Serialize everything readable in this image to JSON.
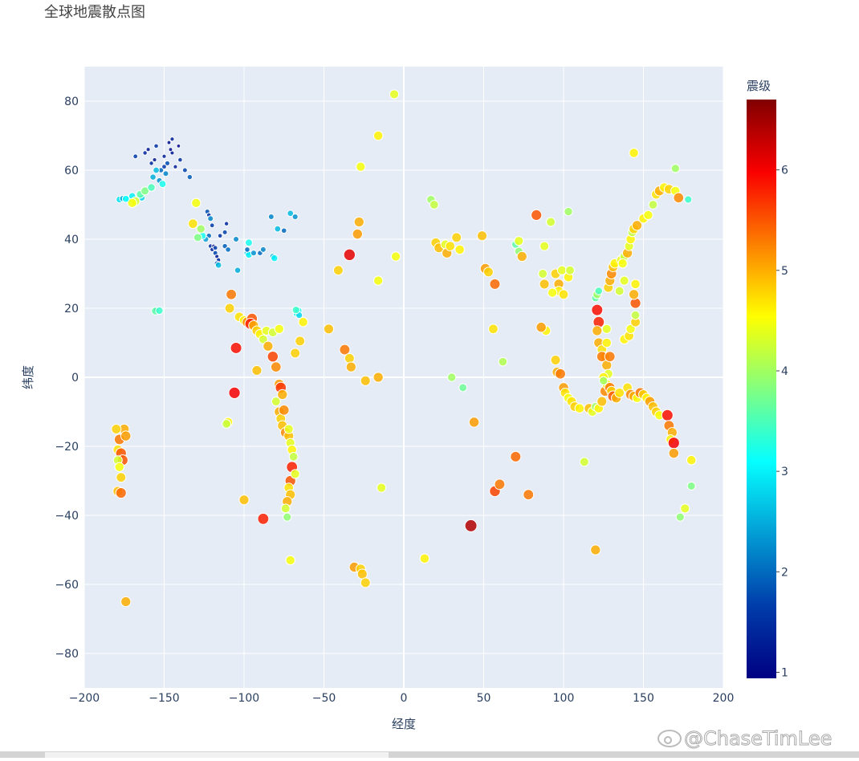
{
  "chart_data": {
    "type": "scatter",
    "title": "全球地震散点图",
    "x_label": "经度",
    "y_label": "纬度",
    "colorbar_title": "震级",
    "xlim": [
      -200,
      200
    ],
    "ylim": [
      -90,
      90
    ],
    "xticks": [
      {
        "value": -200,
        "label": "−200"
      },
      {
        "value": -150,
        "label": "−150"
      },
      {
        "value": -100,
        "label": "−100"
      },
      {
        "value": -50,
        "label": "−50"
      },
      0,
      50,
      100,
      150,
      200
    ],
    "yticks": [
      {
        "value": -80,
        "label": "−80"
      },
      {
        "value": -60,
        "label": "−60"
      },
      {
        "value": -40,
        "label": "−40"
      },
      {
        "value": -20,
        "label": "−20"
      },
      0,
      20,
      40,
      60,
      80
    ],
    "clim": [
      0.94,
      6.7
    ],
    "cticks": [
      1,
      2,
      3,
      4,
      5,
      6
    ],
    "colorscale": [
      [
        0,
        "#000083"
      ],
      [
        0.125,
        "#003caa"
      ],
      [
        0.375,
        "#05ffff"
      ],
      [
        0.625,
        "#ffff00"
      ],
      [
        0.875,
        "#fa0000"
      ],
      [
        1,
        "#800000"
      ]
    ],
    "grid": true,
    "watermark": "@ChaseTimLee",
    "x": [
      -160,
      -155,
      -150,
      -148,
      -152,
      -145,
      -140,
      -147,
      -158,
      -153,
      -150,
      -143,
      -137,
      -134,
      -168,
      -162,
      -156,
      -149,
      -146,
      -141,
      -155,
      -151,
      -157,
      -145,
      -164,
      -178,
      -176,
      -172,
      -170,
      -168,
      -165,
      -162,
      -158,
      -170,
      -174,
      -123,
      -122,
      -121,
      -120,
      -122,
      -124,
      -121,
      -120,
      -118,
      -117,
      -116,
      -117,
      -116,
      -119,
      -118,
      -115,
      -112,
      -111,
      -112,
      -110,
      -105,
      -104,
      -98,
      -97,
      -98,
      -97,
      -94,
      -90,
      -88,
      -82,
      -81,
      -83,
      -79,
      -71,
      -68,
      -75,
      -126,
      -127,
      -130,
      -132,
      -129,
      -155,
      -155.5,
      -153,
      -67,
      -66,
      -65.5,
      -67.5,
      -108,
      -109,
      -105,
      -106,
      -103,
      -100,
      -98,
      -95,
      -96,
      -94,
      -92,
      -90,
      -88,
      -86,
      -85,
      -82,
      -80,
      -78,
      -77,
      -76,
      -78,
      -77,
      -76,
      -74,
      -72,
      -71,
      -70,
      -69,
      -70,
      -71,
      -72,
      -71,
      -73,
      -74,
      -73,
      -71,
      -88,
      -100,
      -92,
      -110,
      -111,
      -82,
      -78,
      -68,
      -65,
      -63,
      -80,
      -75,
      -72,
      -68,
      -47,
      -37,
      -34,
      -33,
      -24,
      -16,
      -41,
      -34,
      -29,
      -28,
      -27,
      -16,
      -6,
      -16,
      -5,
      -14,
      -31,
      -27,
      -26,
      -24,
      13,
      30,
      37,
      42,
      17,
      19,
      20,
      22,
      26,
      27,
      29,
      33,
      35,
      49,
      51,
      53,
      57,
      56,
      44,
      57,
      60,
      62,
      70,
      78,
      70,
      72,
      74,
      72,
      83,
      88,
      92,
      103,
      87,
      88,
      95,
      97,
      97,
      93,
      99,
      100,
      103,
      104,
      89,
      86,
      95,
      96,
      98,
      100,
      101,
      103,
      105,
      107,
      110,
      113,
      116,
      118,
      120,
      120,
      122,
      124,
      126,
      127,
      129,
      130,
      131,
      133,
      135,
      140,
      142,
      144,
      146,
      148,
      150,
      152,
      154,
      156,
      158,
      160,
      165,
      166,
      168,
      167,
      169,
      169,
      180,
      180,
      176,
      173,
      120,
      121,
      122,
      121,
      122,
      121,
      122,
      124,
      126,
      124,
      127,
      128,
      125,
      125,
      128,
      129,
      130,
      131,
      132,
      136,
      138,
      140,
      141,
      142,
      143,
      144,
      146,
      150,
      153,
      156,
      158,
      160,
      163,
      166,
      170,
      172,
      178,
      170,
      144,
      137,
      138,
      141,
      142,
      145,
      145,
      145,
      144,
      145,
      138,
      135,
      129,
      127,
      127,
      -178,
      -179,
      -177,
      -176,
      -175,
      -174,
      -179,
      -178,
      -177,
      -179,
      -177,
      -174,
      -180
    ],
    "y": [
      66,
      67,
      64,
      62,
      60,
      65,
      63,
      68,
      62,
      57,
      61,
      61,
      60,
      58,
      64,
      65,
      63,
      59,
      66,
      67,
      60,
      56,
      58,
      69,
      52,
      51.5,
      51.8,
      51.5,
      52.5,
      51,
      53,
      54,
      55,
      50.5,
      51.7,
      48,
      47,
      46,
      44,
      41,
      40,
      38,
      37,
      36,
      35,
      34,
      33,
      32.5,
      38,
      37.5,
      41,
      42,
      44.5,
      38,
      37,
      40,
      31,
      36,
      35.5,
      37,
      39,
      36,
      36,
      37,
      35,
      34.5,
      46.5,
      43,
      47.5,
      46.5,
      42.5,
      41,
      43,
      50.5,
      44.5,
      40.5,
      19.5,
      19.2,
      19.3,
      18.5,
      19.3,
      18,
      19.5,
      24,
      20,
      8.5,
      -4.5,
      17.5,
      16.5,
      16,
      17,
      15.5,
      15,
      13.5,
      12.5,
      11,
      13.5,
      9,
      6,
      3,
      -2,
      -3,
      -5,
      -10,
      -12,
      -14,
      -16,
      -17,
      -19,
      -21,
      -23,
      -26,
      -30,
      -32,
      -34,
      -36,
      -38,
      -40.5,
      -53,
      -41,
      -35.5,
      2,
      -13,
      -13.5,
      13,
      14,
      7,
      10.5,
      16,
      -7,
      -9.5,
      -15,
      -28,
      14,
      8,
      5.5,
      3,
      -1,
      0,
      31,
      35.5,
      41.5,
      45,
      61,
      70,
      82,
      28,
      35,
      -32,
      -55,
      -55.5,
      -57,
      -59.5,
      -52.5,
      0,
      -3,
      -43,
      51.5,
      50,
      39,
      37.5,
      38.5,
      36,
      38,
      40.5,
      37,
      41,
      31.5,
      30.5,
      27,
      14,
      -13,
      -33,
      -31,
      4.5,
      -23,
      -34,
      38.5,
      36.5,
      35,
      39.5,
      47,
      38,
      45,
      48,
      30,
      27,
      30,
      27,
      25,
      24.5,
      31,
      24,
      29,
      31,
      13.5,
      14.5,
      5,
      1.5,
      1,
      -3,
      -4.5,
      -6,
      -7,
      -8.5,
      -9,
      -24.5,
      -9,
      -10,
      -50,
      -8.5,
      -9,
      -7,
      -4,
      -2,
      -3,
      -4,
      -5.5,
      -6,
      -4.5,
      -3,
      -5,
      -5.5,
      -6,
      -4.5,
      -5,
      -6,
      -7,
      -8.5,
      -10,
      -11,
      -11,
      -14,
      -16,
      -18,
      -19,
      -22,
      -24,
      -31.5,
      -38,
      -40.5,
      23,
      24,
      25,
      19.5,
      16,
      13.5,
      10,
      8,
      6,
      6,
      3.5,
      1,
      0,
      -1,
      26,
      28,
      30,
      32,
      33,
      34,
      35,
      36,
      38,
      40,
      42,
      43,
      44,
      46,
      47,
      50,
      53,
      54,
      55,
      54.5,
      54,
      52,
      51.5,
      60.5,
      65,
      33,
      11,
      12,
      14,
      16,
      18,
      21.5,
      24,
      27,
      28,
      25,
      6,
      10,
      14,
      -18,
      -21,
      -22,
      -24,
      -15,
      -17,
      -24,
      -26,
      -29,
      -33,
      -33.5,
      -65,
      -15
    ],
    "magnitude": [
      1.2,
      1.5,
      1.3,
      1.8,
      2.0,
      1.2,
      1.5,
      1.1,
      1.4,
      2.3,
      1.6,
      1.3,
      1.7,
      1.9,
      1.6,
      1.4,
      1.2,
      2.2,
      1.1,
      1.0,
      2.6,
      3.2,
      2.5,
      1.3,
      2.8,
      2.9,
      2.5,
      3.4,
      3.0,
      4.3,
      3.6,
      3.8,
      3.5,
      4.5,
      3.1,
      1.8,
      1.5,
      2.2,
      1.6,
      2.0,
      2.4,
      1.5,
      1.3,
      1.7,
      1.2,
      1.4,
      1.8,
      2.6,
      1.1,
      1.6,
      1.5,
      1.7,
      1.4,
      1.9,
      2.0,
      2.2,
      2.5,
      2.7,
      3.0,
      2.0,
      3.2,
      2.3,
      2.0,
      2.2,
      2.5,
      3.0,
      2.2,
      2.6,
      2.6,
      2.3,
      2.0,
      3.2,
      4.0,
      4.5,
      4.7,
      3.8,
      1.8,
      3.6,
      3.4,
      3.0,
      3.2,
      2.8,
      3.4,
      5.3,
      4.8,
      5.9,
      6.0,
      4.7,
      4.6,
      5.2,
      5.5,
      5.8,
      5.0,
      4.8,
      4.6,
      4.3,
      4.4,
      5.0,
      5.6,
      5.2,
      5.1,
      5.7,
      5.0,
      5.0,
      4.8,
      4.9,
      5.2,
      4.9,
      4.4,
      4.6,
      4.2,
      5.8,
      5.5,
      4.7,
      4.9,
      5.0,
      4.3,
      3.9,
      4.5,
      5.8,
      4.9,
      4.9,
      4.6,
      4.2,
      4.3,
      4.5,
      4.8,
      4.8,
      4.6,
      4.3,
      5.2,
      4.4,
      4.4,
      4.9,
      5.3,
      4.8,
      5.0,
      4.9,
      5.0,
      4.8,
      6.1,
      5.1,
      5.0,
      4.5,
      4.6,
      4.4,
      4.5,
      4.5,
      4.4,
      5.1,
      4.8,
      4.9,
      4.8,
      4.6,
      4.0,
      3.7,
      6.4,
      4.0,
      4.2,
      4.8,
      4.9,
      4.4,
      5.0,
      4.7,
      4.8,
      4.6,
      4.9,
      5.1,
      4.8,
      5.4,
      4.7,
      5.1,
      5.6,
      5.3,
      4.1,
      5.4,
      5.3,
      3.6,
      3.9,
      5.0,
      4.4,
      5.5,
      4.4,
      4.3,
      4.0,
      4.3,
      4.9,
      4.8,
      5.0,
      4.6,
      4.5,
      4.4,
      4.7,
      4.6,
      4.3,
      4.6,
      5.1,
      4.8,
      5.0,
      5.3,
      5.1,
      4.7,
      4.5,
      4.7,
      4.8,
      4.6,
      4.3,
      4.9,
      4.4,
      5.0,
      4.0,
      4.6,
      4.9,
      5.2,
      4.6,
      5.3,
      4.8,
      5.5,
      5.0,
      4.7,
      4.7,
      5.2,
      5.0,
      4.5,
      5.3,
      4.8,
      4.6,
      5.1,
      4.9,
      4.8,
      4.5,
      5.9,
      5.3,
      5.0,
      4.6,
      6.0,
      5.1,
      4.6,
      3.8,
      4.4,
      3.9,
      3.6,
      4.0,
      3.5,
      5.9,
      5.8,
      5.0,
      5.0,
      4.7,
      4.8,
      5.3,
      5.0,
      4.4,
      4.6,
      4.0,
      4.8,
      5.0,
      5.2,
      4.9,
      4.6,
      4.4,
      4.2,
      5.0,
      4.4,
      4.6,
      4.2,
      4.8,
      5.0,
      4.6,
      4.5,
      4.2,
      4.7,
      5.0,
      4.6,
      4.8,
      4.5,
      5.2,
      3.4,
      4.0,
      4.6,
      4.5,
      4.6,
      4.7,
      4.5,
      4.8,
      4.2,
      5.5,
      5.0,
      4.6,
      4.4,
      4.3,
      5.3,
      4.6,
      4.4,
      5.3,
      4.7,
      5.5,
      5.5,
      5.0,
      5.1,
      4.3,
      4.5,
      4.8,
      4.9,
      5.4,
      5.0,
      4.8
    ]
  }
}
